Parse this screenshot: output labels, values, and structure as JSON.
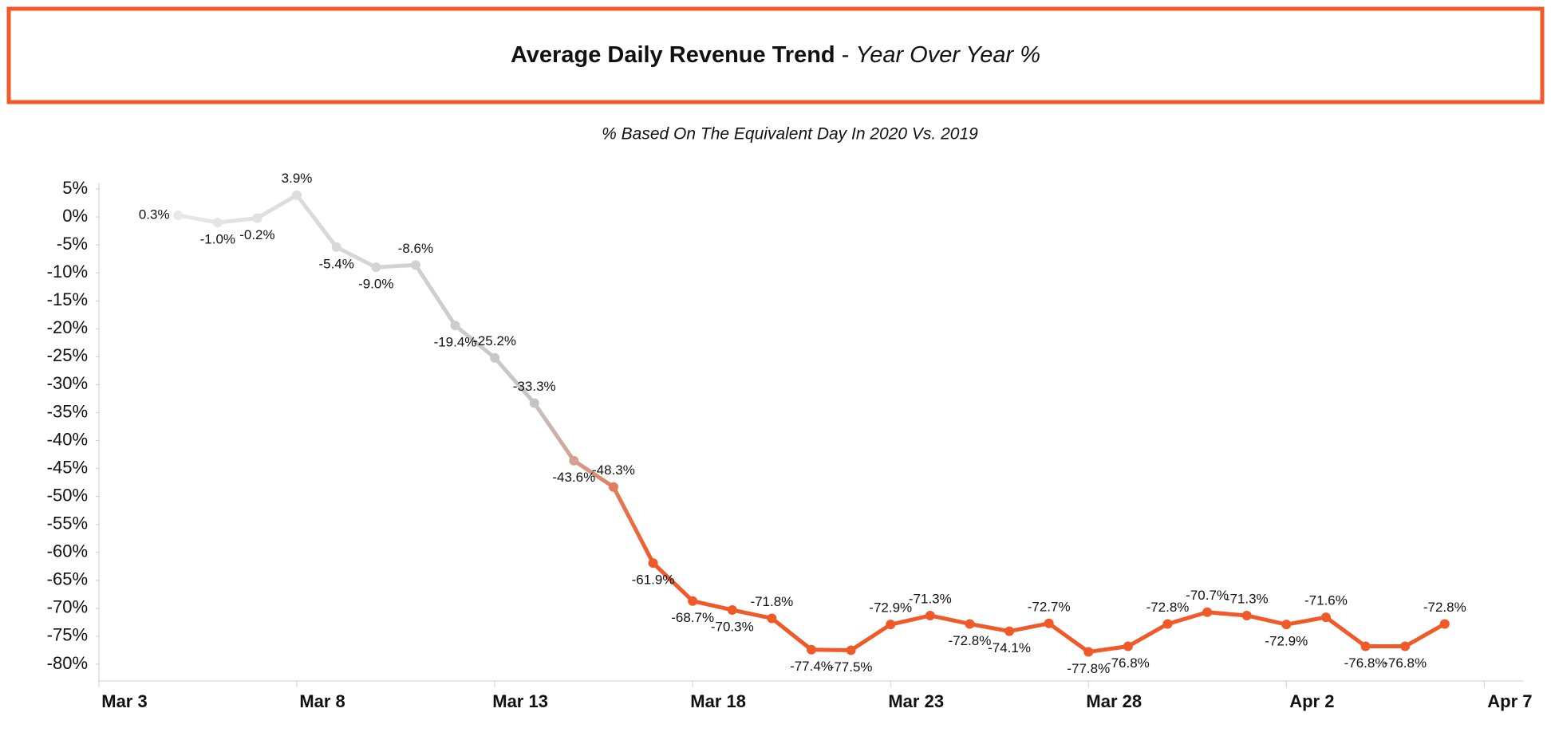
{
  "chart_data": {
    "type": "line",
    "title": "Average Daily Revenue Trend",
    "title_separator": "-",
    "title_suffix": "Year Over Year %",
    "subtitle": "% Based On The Equivalent Day In 2020 Vs. 2019",
    "x": [
      "Mar 5",
      "Mar 6",
      "Mar 7",
      "Mar 8",
      "Mar 9",
      "Mar 10",
      "Mar 11",
      "Mar 12",
      "Mar 13",
      "Mar 14",
      "Mar 15",
      "Mar 16",
      "Mar 17",
      "Mar 18",
      "Mar 19",
      "Mar 20",
      "Mar 21",
      "Mar 22",
      "Mar 23",
      "Mar 24",
      "Mar 25",
      "Mar 26",
      "Mar 27",
      "Mar 28",
      "Mar 29",
      "Mar 30",
      "Mar 31",
      "Apr 1",
      "Apr 2",
      "Apr 3",
      "Apr 4",
      "Apr 5",
      "Apr 6"
    ],
    "values": [
      0.3,
      -1.0,
      -0.2,
      3.9,
      -5.4,
      -9.0,
      -8.6,
      -19.4,
      -25.2,
      -33.3,
      -43.6,
      -48.3,
      -61.9,
      -68.7,
      -70.3,
      -71.8,
      -77.4,
      -77.5,
      -72.9,
      -71.3,
      -72.8,
      -74.1,
      -72.7,
      -77.8,
      -76.8,
      -72.8,
      -70.7,
      -71.3,
      -72.9,
      -71.6,
      -76.8,
      -76.8,
      -72.8
    ],
    "value_labels": [
      "0.3%",
      "-1.0%",
      "-0.2%",
      "3.9%",
      "-5.4%",
      "-9.0%",
      "-8.6%",
      "-19.4%",
      "-25.2%",
      "-33.3%",
      "-43.6%",
      "-48.3%",
      "-61.9%",
      "-68.7%",
      "-70.3%",
      "-71.8%",
      "-77.4%",
      "-77.5%",
      "-72.9%",
      "-71.3%",
      "-72.8%",
      "-74.1%",
      "-72.7%",
      "-77.8%",
      "-76.8%",
      "-72.8%",
      "-70.7%",
      "-71.3%",
      "-72.9%",
      "-71.6%",
      "-76.8%",
      "-76.8%",
      "-72.8%"
    ],
    "gradient": [
      {
        "x": "Mar 5",
        "color": "#e8e8e8"
      },
      {
        "x": "Mar 14",
        "color": "#c4c4c4"
      },
      {
        "x": "Mar 17",
        "color": "#f05a28"
      }
    ],
    "xlim": [
      "Mar 3",
      "Apr 8"
    ],
    "xticks": [
      "Mar 3",
      "Mar 8",
      "Mar 13",
      "Mar 18",
      "Mar 23",
      "Mar 28",
      "Apr 2",
      "Apr 7"
    ],
    "ylim": [
      -83,
      6
    ],
    "yticks": [
      {
        "value": 5,
        "label": "5%"
      },
      {
        "value": 0,
        "label": "0%"
      },
      {
        "value": -5,
        "label": "-5%"
      },
      {
        "value": -10,
        "label": "-10%"
      },
      {
        "value": -15,
        "label": "-15%"
      },
      {
        "value": -20,
        "label": "-20%"
      },
      {
        "value": -25,
        "label": "-25%"
      },
      {
        "value": -30,
        "label": "-30%"
      },
      {
        "value": -35,
        "label": "-35%"
      },
      {
        "value": -40,
        "label": "-40%"
      },
      {
        "value": -45,
        "label": "-45%"
      },
      {
        "value": -50,
        "label": "-50%"
      },
      {
        "value": -55,
        "label": "-55%"
      },
      {
        "value": -60,
        "label": "-60%"
      },
      {
        "value": -65,
        "label": "-65%"
      },
      {
        "value": -70,
        "label": "-70%"
      },
      {
        "value": -75,
        "label": "-75%"
      },
      {
        "value": -80,
        "label": "-80%"
      }
    ],
    "grid": false
  }
}
